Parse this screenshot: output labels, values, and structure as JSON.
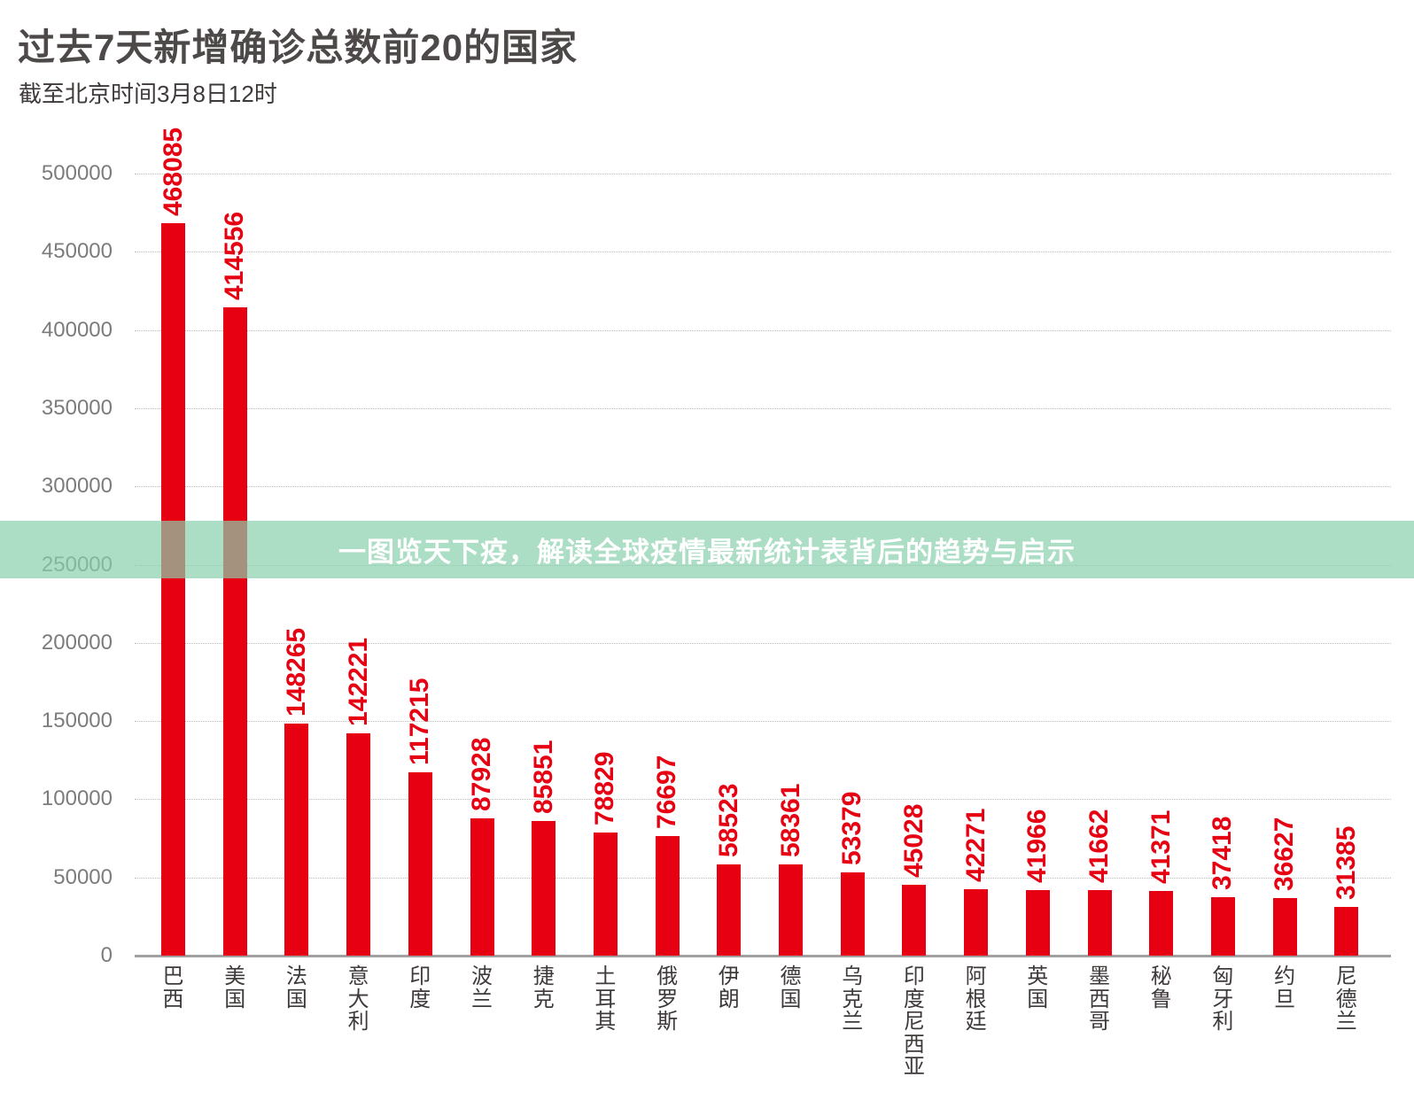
{
  "header": {
    "title": "过去7天新增确诊总数前20的国家",
    "subtitle": "截至北京时间3月8日12时"
  },
  "banner": {
    "text": "一图览天下疫，解读全球疫情最新统计表背后的趋势与启示",
    "background_rgba": "rgba(137,208,172,0.7)",
    "text_color": "#ffffff"
  },
  "chart_data": {
    "type": "bar",
    "title": "过去7天新增确诊总数前20的国家",
    "subtitle": "截至北京时间3月8日12时",
    "categories": [
      "巴西",
      "美国",
      "法国",
      "意大利",
      "印度",
      "波兰",
      "捷克",
      "土耳其",
      "俄罗斯",
      "伊朗",
      "德国",
      "乌克兰",
      "印度尼西亚",
      "阿根廷",
      "英国",
      "墨西哥",
      "秘鲁",
      "匈牙利",
      "约旦",
      "尼德兰"
    ],
    "values": [
      468085,
      414556,
      148265,
      142221,
      117215,
      87928,
      85851,
      78829,
      76697,
      58523,
      58361,
      53379,
      45028,
      42271,
      41966,
      41662,
      41371,
      37418,
      36627,
      31385
    ],
    "xlabel": "",
    "ylabel": "",
    "ylim": [
      0,
      500000
    ],
    "yticks": [
      0,
      50000,
      100000,
      150000,
      200000,
      250000,
      300000,
      350000,
      400000,
      450000,
      500000
    ],
    "grid": true,
    "legend": false,
    "bar_color": "#e60012",
    "value_label_color": "#e60012",
    "axis_color": "#a2a0a0",
    "gridline_color": "#bdbdbd",
    "tick_label_color": "#7d7b7b",
    "category_label_color": "#3e3a39"
  }
}
